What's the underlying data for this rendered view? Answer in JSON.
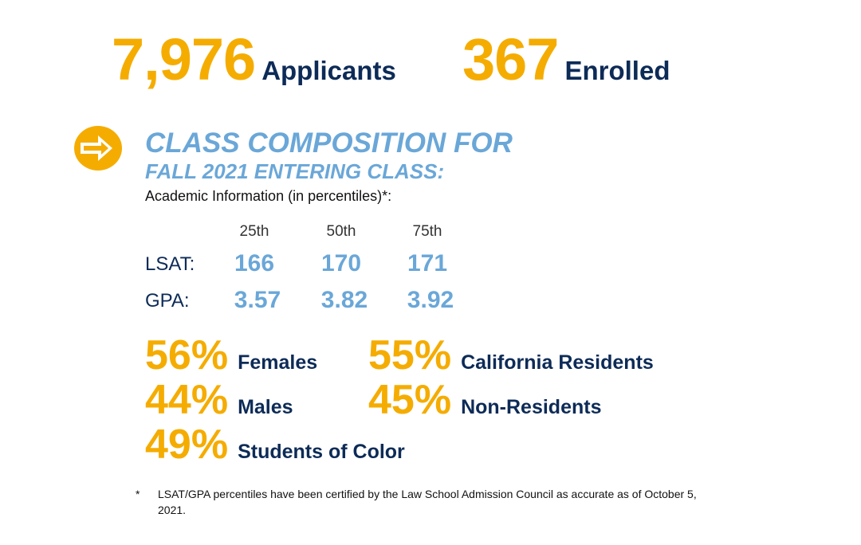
{
  "stats": {
    "applicants": {
      "number": "7,976",
      "label": "Applicants"
    },
    "enrolled": {
      "number": "367",
      "label": "Enrolled"
    }
  },
  "composition": {
    "title_line1": "CLASS COMPOSITION FOR",
    "title_line2": "FALL 2021 ENTERING CLASS:",
    "subtitle": "Academic Information (in percentiles)*:",
    "columns": [
      "25th",
      "50th",
      "75th"
    ],
    "rows": [
      {
        "label": "LSAT:",
        "values": [
          "166",
          "170",
          "171"
        ]
      },
      {
        "label": "GPA:",
        "values": [
          "3.57",
          "3.82",
          "3.92"
        ]
      }
    ]
  },
  "demographics": [
    {
      "pct": "56%",
      "label": "Females"
    },
    {
      "pct": "44%",
      "label": "Males"
    },
    {
      "pct": "49%",
      "label": "Students of Color"
    },
    {
      "pct": "55%",
      "label": "California Residents"
    },
    {
      "pct": "45%",
      "label": "Non-Residents"
    }
  ],
  "footnote": {
    "marker": "*",
    "text": "LSAT/GPA percentiles have been certified by the Law School Admission Council as accurate as of October 5, 2021."
  },
  "colors": {
    "gold": "#f5ac00",
    "navy": "#0d2b57",
    "sky": "#6aa7d8"
  },
  "icons": {
    "arrow": "arrow-right-circle-icon"
  }
}
